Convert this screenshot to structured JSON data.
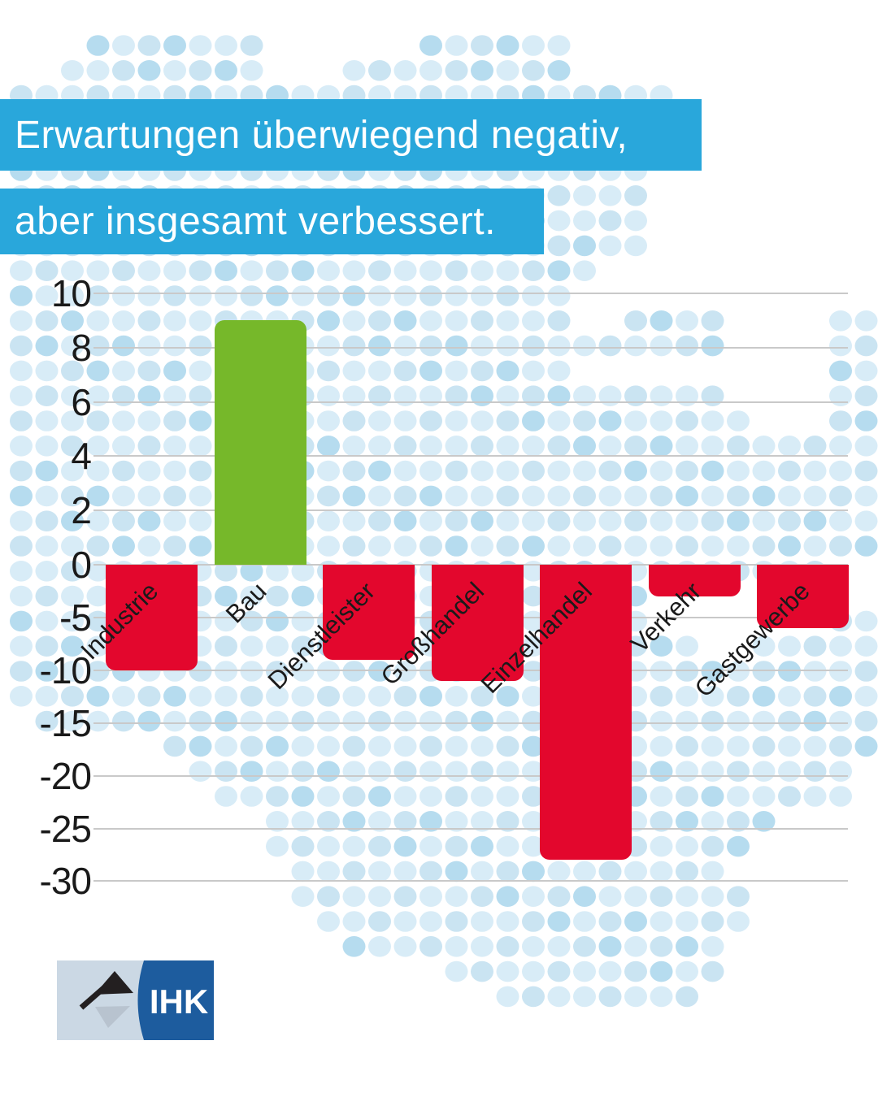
{
  "header": {
    "lines": [
      "Erwartungen überwiegend negativ,",
      "aber insgesamt verbessert."
    ],
    "bg_color": "#29A7DB",
    "text_color": "#ffffff"
  },
  "chart_data": {
    "type": "bar",
    "title": "Erwartungen überwiegend negativ, aber insgesamt verbessert.",
    "categories": [
      "Industrie",
      "Bau",
      "Dienstleister",
      "Großhandel",
      "Einzelhandel",
      "Verkehr",
      "Gastgewerbe"
    ],
    "values": [
      -10,
      9,
      -9,
      -11,
      -28,
      -3,
      -6
    ],
    "xlabel": "",
    "ylabel": "",
    "ytick_labels": [
      10,
      8,
      6,
      4,
      2,
      0,
      -5,
      -10,
      -15,
      -20,
      -25,
      -30
    ],
    "ylim": [
      -30,
      10
    ],
    "grid": true,
    "legend": false,
    "bar_colors": {
      "positive": "#76B82A",
      "negative": "#E3072D"
    },
    "gridline_color": "#c9c9c9",
    "axis_text_color": "#1a1a1a",
    "axis_note": "non-linear y-axis: ticks every 2 units above zero and every 5 units below zero at similar pixel spacing"
  },
  "logo": {
    "text": "IHK",
    "panel_left_color": "#CBD8E4",
    "panel_right_color": "#1D5C9E",
    "flag_color": "#231F20",
    "flag_shadow_color": "#B6C1CC",
    "text_color": "#ffffff"
  },
  "background": {
    "dot_colors": [
      "#D8ECF7",
      "#CAE4F2",
      "#B6DCEF"
    ],
    "map_rows": [
      [
        [
          3,
          9
        ],
        [
          16,
          21
        ]
      ],
      [
        [
          2,
          9
        ],
        [
          13,
          21
        ]
      ],
      [
        [
          0,
          25
        ]
      ],
      [
        [
          0,
          25
        ]
      ],
      [
        [
          0,
          25
        ]
      ],
      [
        [
          0,
          24
        ]
      ],
      [
        [
          0,
          24
        ]
      ],
      [
        [
          0,
          24
        ]
      ],
      [
        [
          0,
          24
        ]
      ],
      [
        [
          0,
          22
        ]
      ],
      [
        [
          0,
          21
        ]
      ],
      [
        [
          0,
          21
        ],
        [
          24,
          27
        ],
        [
          32,
          33
        ]
      ],
      [
        [
          0,
          27
        ],
        [
          32,
          33
        ]
      ],
      [
        [
          0,
          21
        ],
        [
          32,
          33
        ]
      ],
      [
        [
          0,
          27
        ],
        [
          32,
          33
        ]
      ],
      [
        [
          0,
          28
        ],
        [
          32,
          33
        ]
      ],
      [
        [
          0,
          33
        ]
      ],
      [
        [
          0,
          33
        ]
      ],
      [
        [
          0,
          33
        ]
      ],
      [
        [
          0,
          33
        ]
      ],
      [
        [
          0,
          33
        ]
      ],
      [
        [
          0,
          31
        ]
      ],
      [
        [
          0,
          24
        ]
      ],
      [
        [
          0,
          24
        ],
        [
          32,
          33
        ]
      ],
      [
        [
          0,
          26
        ],
        [
          29,
          33
        ]
      ],
      [
        [
          0,
          33
        ]
      ],
      [
        [
          0,
          33
        ]
      ],
      [
        [
          1,
          33
        ]
      ],
      [
        [
          6,
          33
        ]
      ],
      [
        [
          7,
          32
        ]
      ],
      [
        [
          8,
          32
        ]
      ],
      [
        [
          10,
          29
        ]
      ],
      [
        [
          10,
          28
        ]
      ],
      [
        [
          11,
          27
        ]
      ],
      [
        [
          11,
          28
        ]
      ],
      [
        [
          12,
          28
        ]
      ],
      [
        [
          13,
          27
        ]
      ],
      [
        [
          17,
          27
        ]
      ],
      [
        [
          19,
          26
        ]
      ]
    ]
  }
}
